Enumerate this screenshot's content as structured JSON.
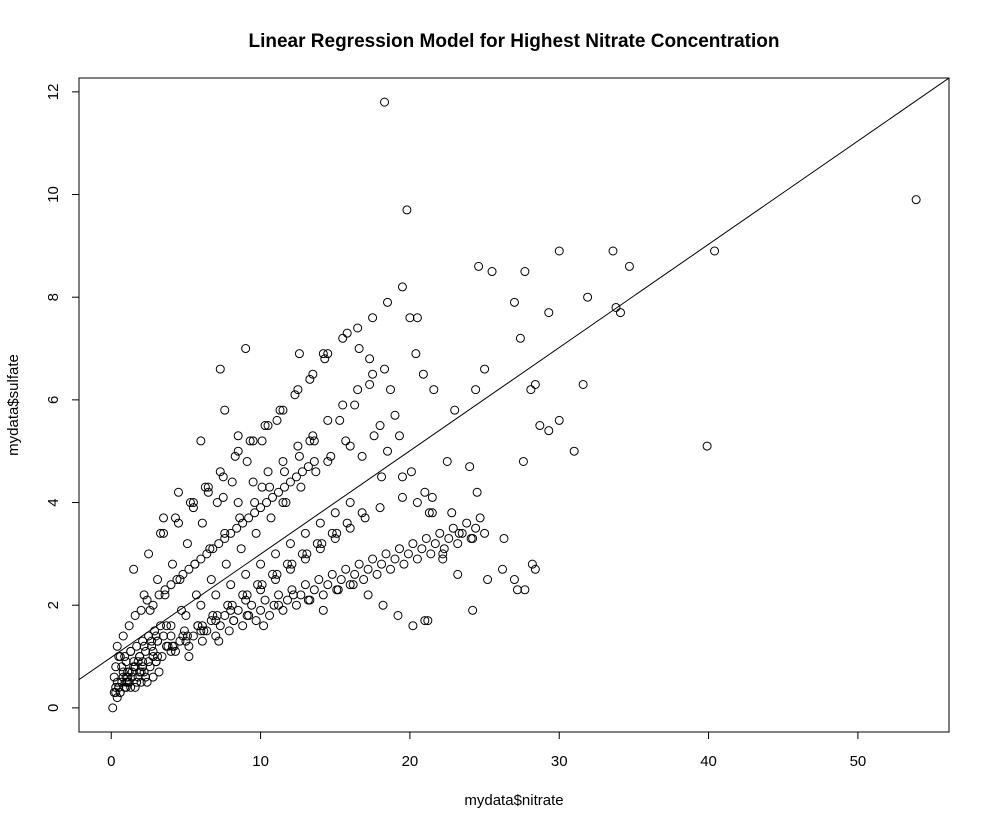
{
  "chart_data": {
    "type": "scatter",
    "title": "Linear Regression Model for Highest Nitrate Concentration",
    "xlabel": "mydata$nitrate",
    "ylabel": "mydata$sulfate",
    "xlim": [
      -2.16,
      56.1
    ],
    "ylim": [
      -0.47,
      12.27
    ],
    "xticks": [
      0,
      10,
      20,
      30,
      40,
      50
    ],
    "yticks": [
      0,
      2,
      4,
      6,
      8,
      10,
      12
    ],
    "grid": false,
    "legend": "none",
    "regression_line": {
      "x": [
        -2.16,
        56.1
      ],
      "y": [
        0.55,
        12.27
      ]
    },
    "x": [
      0.1,
      0.3,
      0.2,
      0.3,
      0.5,
      0.4,
      0.6,
      0.8,
      1.0,
      1.2,
      1.4,
      1.6,
      1.8,
      2.0,
      2.2,
      2.4,
      2.6,
      2.8,
      3.0,
      3.2,
      0.7,
      0.9,
      1.1,
      1.3,
      1.5,
      1.7,
      1.9,
      2.1,
      2.3,
      2.5,
      2.7,
      2.9,
      3.1,
      3.3,
      3.5,
      0.4,
      0.6,
      0.8,
      1.2,
      1.6,
      2.0,
      2.4,
      2.8,
      3.2,
      3.6,
      4.0,
      4.4,
      4.8,
      5.2,
      5.6,
      6.0,
      6.4,
      6.8,
      7.2,
      7.6,
      8.0,
      8.4,
      8.8,
      9.2,
      9.6,
      10.0,
      10.4,
      10.8,
      11.2,
      11.6,
      12.0,
      12.4,
      12.8,
      13.2,
      13.6,
      1.5,
      2.5,
      3.5,
      4.5,
      5.5,
      6.5,
      7.5,
      8.5,
      9.5,
      10.5,
      11.5,
      12.5,
      13.5,
      14.5,
      15.5,
      16.5,
      17.5,
      18.5,
      19.5,
      20.5,
      2.2,
      3.1,
      4.1,
      5.1,
      6.1,
      7.1,
      8.1,
      9.1,
      10.1,
      11.1,
      1.0,
      2.0,
      3.0,
      4.0,
      5.0,
      6.0,
      7.0,
      8.0,
      9.0,
      10.0,
      11.0,
      12.0,
      13.0,
      14.0,
      15.0,
      16.0,
      17.0,
      18.0,
      2.6,
      3.6,
      4.6,
      5.6,
      6.6,
      7.6,
      8.6,
      9.6,
      10.6,
      11.6,
      12.6,
      13.6,
      3.0,
      4.0,
      5.0,
      6.0,
      7.0,
      8.0,
      9.0,
      10.0,
      11.0,
      12.0,
      13.0,
      14.0,
      15.0,
      16.0,
      2.8,
      3.8,
      4.8,
      5.8,
      6.8,
      7.8,
      8.8,
      9.8,
      10.8,
      11.8,
      12.8,
      13.8,
      14.8,
      15.8,
      16.8,
      3.3,
      4.3,
      5.3,
      6.3,
      7.3,
      8.3,
      9.3,
      10.3,
      11.3,
      12.3,
      13.3,
      14.3,
      15.3,
      16.3,
      17.3,
      18.3,
      19.3,
      3.5,
      4.5,
      5.5,
      6.5,
      7.5,
      8.5,
      9.5,
      10.5,
      11.5,
      12.5,
      13.5,
      14.5,
      15.5,
      16.5,
      17.5,
      18.5,
      19.5,
      20.5,
      21.5,
      4.2,
      5.2,
      6.2,
      7.2,
      8.2,
      9.2,
      10.2,
      11.2,
      12.2,
      13.2,
      14.2,
      15.2,
      16.2,
      17.2,
      18.2,
      19.2,
      20.2,
      21.2,
      22.2,
      23.2,
      24.2,
      25.2,
      26.2,
      27.2,
      28.2,
      18.3,
      19.8,
      53.9,
      40.4,
      39.9,
      30.0,
      33.6,
      34.7,
      31.9,
      33.8,
      34.1,
      29.3,
      27.7,
      24.6,
      25.5,
      27.0,
      27.4,
      28.1,
      28.4,
      28.7,
      31.0,
      31.6,
      30.0,
      27.6,
      27.7,
      28.4,
      24.4,
      25.0,
      23.0,
      24.5,
      22.5,
      22.2,
      23.3,
      24.0,
      21.0,
      21.3,
      21.6,
      20.9,
      20.4,
      20.0,
      7.3,
      9.0,
      12.6,
      14.2,
      15.8,
      16.6,
      17.3,
      18.0,
      18.7,
      19.0,
      20.1,
      21.0,
      21.5,
      22.8,
      24.2,
      26.3,
      27.0,
      29.3,
      7.6,
      6.0,
      8.5,
      10.1,
      11.5,
      13.3,
      14.5,
      16.0,
      16.8,
      17.6,
      18.1,
      19.5,
      0.2,
      0.4,
      0.5,
      0.6,
      0.7,
      0.9,
      1.0,
      1.1,
      1.2,
      1.3,
      1.4,
      1.5,
      1.7,
      1.9,
      2.1,
      2.3,
      0.3,
      0.5,
      0.8,
      1.0,
      1.3,
      1.6,
      1.9,
      2.2,
      2.5,
      2.8,
      3.1,
      3.4,
      3.7,
      4.0,
      4.3,
      4.6,
      4.9,
      5.2,
      5.5,
      5.8,
      6.1,
      6.4,
      6.7,
      7.0,
      7.3,
      7.6,
      7.9,
      8.2,
      8.5,
      8.8,
      9.1,
      9.4,
      9.7,
      10.0,
      10.3,
      10.6,
      10.9,
      11.2,
      11.5,
      11.8,
      12.1,
      12.4,
      12.7,
      13.0,
      13.3,
      13.6,
      13.9,
      14.2,
      14.5,
      14.8,
      15.1,
      15.4,
      15.7,
      16.0,
      16.3,
      16.6,
      16.9,
      17.2,
      17.5,
      17.8,
      18.1,
      18.4,
      18.7,
      19.0,
      19.3,
      19.6,
      19.9,
      20.2,
      20.5,
      20.8,
      21.1,
      21.4,
      21.7,
      22.0,
      22.3,
      22.6,
      22.9,
      23.2,
      23.5,
      23.8,
      24.1,
      24.4,
      24.7,
      25.0,
      1.8,
      2.7,
      3.7,
      4.7,
      5.7,
      6.7,
      7.7,
      8.7,
      9.7,
      10.7,
      11.7,
      12.7,
      13.7,
      14.7,
      15.7,
      1.1,
      2.1,
      3.1,
      4.1,
      5.1,
      6.1,
      7.1,
      8.1,
      9.1,
      10.1,
      11.1,
      12.1,
      13.1,
      14.1,
      15.1
    ],
    "y": [
      0.0,
      0.4,
      0.6,
      0.3,
      0.4,
      0.5,
      0.3,
      0.6,
      0.4,
      0.5,
      0.7,
      0.4,
      0.6,
      0.5,
      0.7,
      0.5,
      0.8,
      0.6,
      0.9,
      0.7,
      0.8,
      1.0,
      0.7,
      1.1,
      0.9,
      1.2,
      1.0,
      1.3,
      1.1,
      1.4,
      1.2,
      1.5,
      1.3,
      1.6,
      1.4,
      1.2,
      1.0,
      1.4,
      1.6,
      1.8,
      1.9,
      2.1,
      2.0,
      2.2,
      2.3,
      2.4,
      2.5,
      2.6,
      2.7,
      2.8,
      2.9,
      3.0,
      3.1,
      3.2,
      3.3,
      3.4,
      3.5,
      3.6,
      3.7,
      3.8,
      3.9,
      4.0,
      4.1,
      4.2,
      4.3,
      4.4,
      4.5,
      4.6,
      4.7,
      4.8,
      2.7,
      3.0,
      3.4,
      3.6,
      4.0,
      4.2,
      4.5,
      5.0,
      5.2,
      5.5,
      5.8,
      6.2,
      6.5,
      6.9,
      7.2,
      7.4,
      7.6,
      7.9,
      8.2,
      7.6,
      2.2,
      2.5,
      2.8,
      3.2,
      3.6,
      4.0,
      4.4,
      4.8,
      5.2,
      5.6,
      0.5,
      0.7,
      0.9,
      1.1,
      1.3,
      1.5,
      1.7,
      1.9,
      2.1,
      2.3,
      2.5,
      2.7,
      2.9,
      3.1,
      3.3,
      3.5,
      3.7,
      3.9,
      1.9,
      2.2,
      2.5,
      2.8,
      3.1,
      3.4,
      3.7,
      4.0,
      4.3,
      4.6,
      4.9,
      5.2,
      1.4,
      1.6,
      1.8,
      2.0,
      2.2,
      2.4,
      2.6,
      2.8,
      3.0,
      3.2,
      3.4,
      3.6,
      3.8,
      4.0,
      1.0,
      1.2,
      1.4,
      1.6,
      1.8,
      2.0,
      2.2,
      2.4,
      2.6,
      2.8,
      3.0,
      3.2,
      3.4,
      3.6,
      3.8,
      3.4,
      3.7,
      4.0,
      4.3,
      4.6,
      4.9,
      5.2,
      5.5,
      5.8,
      6.1,
      6.4,
      6.8,
      5.6,
      5.9,
      6.3,
      6.6,
      5.3,
      3.7,
      4.2,
      3.9,
      4.3,
      4.1,
      4.0,
      4.4,
      4.6,
      4.8,
      5.1,
      5.3,
      5.6,
      5.9,
      6.2,
      6.5,
      5.0,
      4.5,
      4.0,
      3.8,
      1.2,
      1.0,
      1.5,
      1.3,
      1.7,
      1.8,
      1.6,
      2.0,
      2.2,
      2.1,
      1.9,
      2.3,
      2.4,
      2.2,
      2.0,
      1.8,
      1.6,
      1.7,
      2.9,
      2.6,
      1.9,
      2.5,
      2.7,
      2.3,
      2.8,
      11.8,
      9.7,
      9.9,
      8.9,
      5.1,
      8.9,
      8.9,
      8.6,
      8.0,
      7.8,
      7.7,
      7.7,
      8.5,
      8.6,
      8.5,
      7.9,
      7.2,
      6.2,
      6.3,
      5.5,
      5.0,
      6.3,
      5.6,
      4.8,
      2.3,
      2.7,
      6.2,
      6.6,
      5.8,
      4.2,
      4.8,
      3.0,
      3.4,
      4.7,
      1.7,
      3.8,
      6.2,
      6.5,
      6.9,
      7.6,
      6.6,
      7.0,
      6.9,
      6.9,
      7.3,
      7.0,
      6.8,
      5.5,
      6.2,
      5.7,
      4.6,
      4.2,
      4.1,
      3.8,
      3.3,
      3.3,
      2.5,
      5.4,
      5.8,
      5.2,
      5.3,
      4.3,
      4.0,
      5.2,
      4.8,
      5.1,
      4.9,
      5.3,
      4.5,
      4.1,
      0.3,
      0.2,
      0.4,
      0.3,
      0.5,
      0.4,
      0.6,
      0.5,
      0.7,
      0.4,
      0.6,
      0.8,
      0.5,
      0.7,
      0.9,
      0.6,
      0.8,
      1.0,
      0.7,
      0.9,
      1.1,
      0.8,
      1.0,
      1.2,
      0.9,
      1.1,
      1.3,
      1.0,
      1.2,
      1.4,
      1.1,
      1.3,
      1.5,
      1.2,
      1.4,
      1.6,
      1.3,
      1.5,
      1.7,
      1.4,
      1.6,
      1.8,
      1.5,
      1.7,
      1.9,
      1.6,
      1.8,
      2.0,
      1.7,
      1.9,
      2.1,
      1.8,
      2.0,
      2.2,
      1.9,
      2.1,
      2.3,
      2.0,
      2.2,
      2.4,
      2.1,
      2.3,
      2.5,
      2.2,
      2.4,
      2.6,
      2.3,
      2.5,
      2.7,
      2.4,
      2.6,
      2.8,
      2.5,
      2.7,
      2.9,
      2.6,
      2.8,
      3.0,
      2.7,
      2.9,
      3.1,
      2.8,
      3.0,
      3.2,
      2.9,
      3.1,
      3.3,
      3.0,
      3.2,
      3.4,
      3.1,
      3.3,
      3.5,
      3.2,
      3.4,
      3.6,
      3.3,
      3.5,
      3.7,
      3.4,
      0.9,
      1.3,
      1.6,
      1.9,
      2.2,
      2.5,
      2.8,
      3.1,
      3.4,
      3.7,
      4.0,
      4.3,
      4.6,
      4.9,
      5.2,
      0.6,
      0.8,
      1.0,
      1.2,
      1.4,
      1.6,
      1.8,
      2.0,
      2.2,
      2.4,
      2.6,
      2.8,
      3.0,
      3.2,
      3.4
    ]
  }
}
